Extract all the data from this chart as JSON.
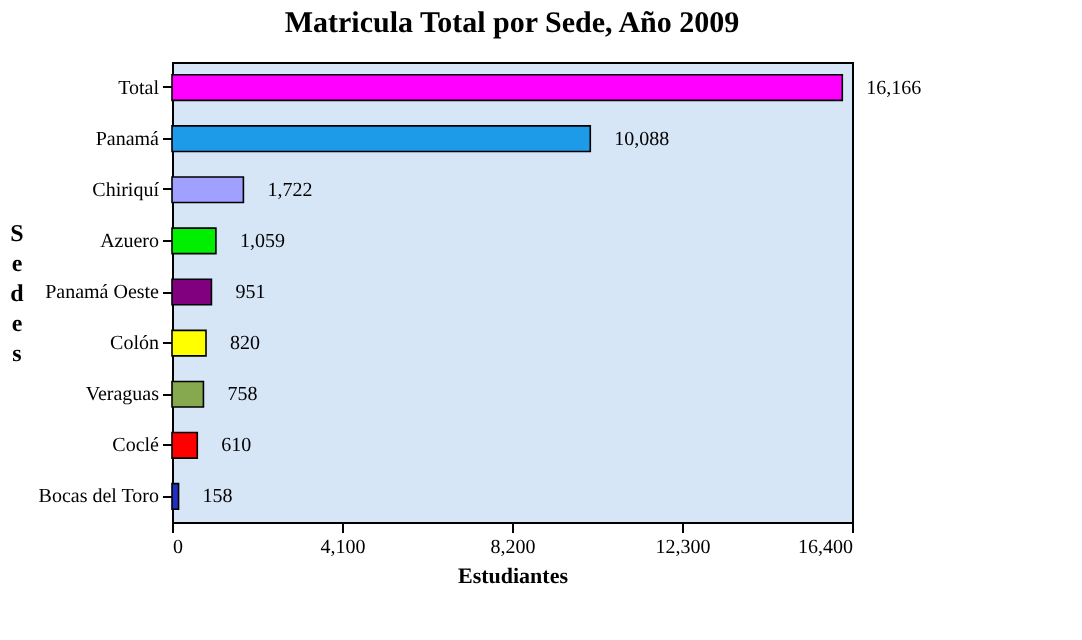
{
  "chart_data": {
    "type": "bar",
    "orientation": "horizontal",
    "title": "Matricula Total por Sede, Año 2009",
    "xlabel": "Estudiantes",
    "ylabel": "Sedes",
    "categories": [
      "Total",
      "Panamá",
      "Chiriquí",
      "Azuero",
      "Panamá Oeste",
      "Colón",
      "Veraguas",
      "Coclé",
      "Bocas del Toro"
    ],
    "values": [
      16166,
      10088,
      1722,
      1059,
      951,
      820,
      758,
      610,
      158
    ],
    "value_labels": [
      "16,166",
      "10,088",
      "1,722",
      "1,059",
      "951",
      "820",
      "758",
      "610",
      "158"
    ],
    "colors": [
      "#ff00ff",
      "#1e9be8",
      "#a0a0ff",
      "#00ee00",
      "#800080",
      "#ffff00",
      "#86a84e",
      "#ff0000",
      "#2030c0"
    ],
    "xlim": [
      0,
      16400
    ],
    "xticks": [
      0,
      {
        "value": 4100,
        "label": "4,100"
      },
      {
        "value": 8200,
        "label": "8,200"
      },
      {
        "value": 12300,
        "label": "12,300"
      },
      {
        "value": 16400,
        "label": "16,400"
      }
    ],
    "grid": false
  }
}
